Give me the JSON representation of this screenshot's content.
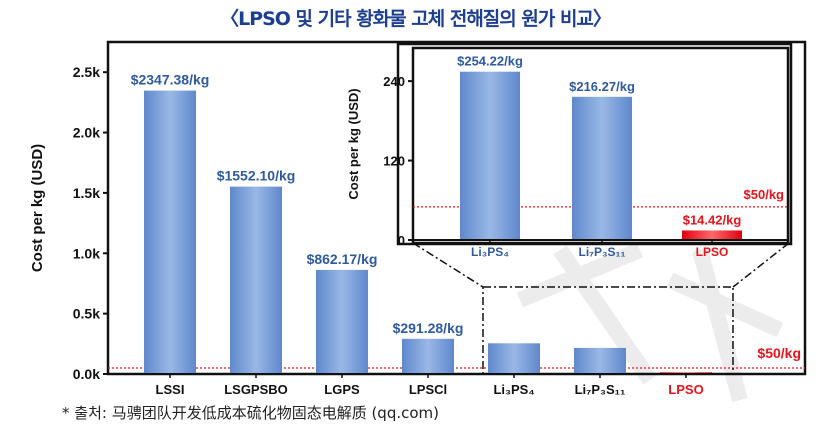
{
  "title": "〈LPSO 및 기타 황화물 고체 전해질의 원가 비교〉",
  "caption": "* 출처: 马骋团队开发低成本硫化物固态电解质 (qq.com)",
  "colors": {
    "bar": "#6f97d4",
    "highlight": "#e8131b",
    "label_blue": "#2f5a9e",
    "threshold": "#e8131b",
    "title": "#1d3f8f"
  },
  "chart_data": [
    {
      "type": "bar",
      "title": "",
      "ylabel": "Cost per kg (USD)",
      "xlabel": "",
      "ylim": [
        0,
        2750
      ],
      "yticks": [
        0,
        500,
        1000,
        1500,
        2000,
        2500
      ],
      "ytick_labels": [
        "0.0k",
        "0.5k",
        "1.0k",
        "1.5k",
        "2.0k",
        "2.5k"
      ],
      "categories": [
        "LSSI",
        "LSGPSBO",
        "LGPS",
        "LPSCl",
        "Li₃PS₄",
        "Li₇P₃S₁₁",
        "LPSO"
      ],
      "values": [
        2347.38,
        1552.1,
        862.17,
        291.28,
        254.22,
        216.27,
        14.42
      ],
      "data_labels": [
        "$2347.38/kg",
        "$1552.10/kg",
        "$862.17/kg",
        "$291.28/kg",
        "",
        "",
        ""
      ],
      "threshold": {
        "value": 50,
        "label": "$50/kg"
      },
      "highlight": "LPSO"
    },
    {
      "type": "bar",
      "title": "inset",
      "ylabel": "Cost per kg (USD)",
      "ylim": [
        0,
        290
      ],
      "yticks": [
        0,
        120,
        240
      ],
      "ytick_labels": [
        "0",
        "120",
        "240"
      ],
      "categories": [
        "Li₃PS₄",
        "Li₇P₃S₁₁",
        "LPSO"
      ],
      "values": [
        254.22,
        216.27,
        14.42
      ],
      "data_labels": [
        "$254.22/kg",
        "$216.27/kg",
        "$14.42/kg"
      ],
      "threshold": {
        "value": 50,
        "label": "$50/kg"
      },
      "highlight": "LPSO"
    }
  ]
}
